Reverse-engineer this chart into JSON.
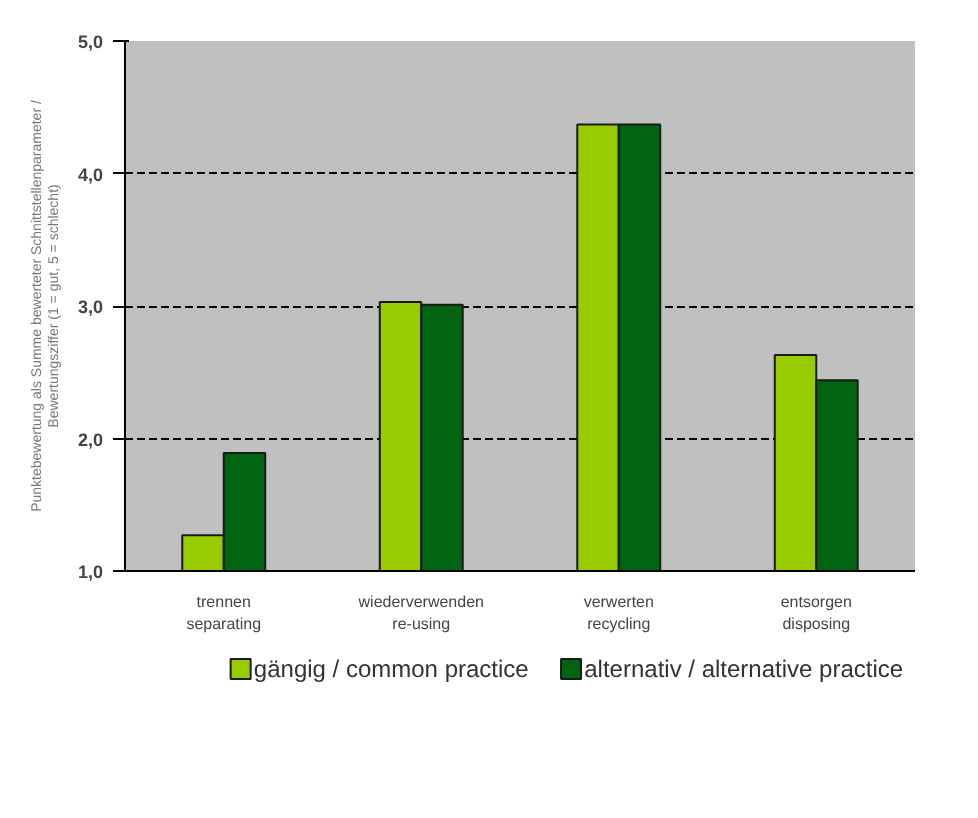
{
  "chart_data": {
    "type": "bar",
    "ylabel": "Punktebewertung als Summe bewerteter Schnittstellenparameter / Bewertungsziffer (1 = gut, 5 = schlecht)",
    "categories": [
      "trennen\nseparating",
      "wiederverwenden\nre-using",
      "verwerten\nrecycling",
      "entsorgen\ndisposing"
    ],
    "series": [
      {
        "name": "gängig / common practice",
        "color": "#99cc00",
        "values": [
          1.27,
          3.03,
          4.37,
          2.63
        ]
      },
      {
        "name": "alternativ / alternative practice",
        "color": "#006411",
        "values": [
          1.89,
          3.01,
          4.37,
          2.44
        ]
      }
    ],
    "ylim": [
      1,
      5
    ],
    "yticks": [
      {
        "value": 1,
        "label": "1,0"
      },
      {
        "value": 2,
        "label": "2,0"
      },
      {
        "value": 3,
        "label": "3,0"
      },
      {
        "value": 4,
        "label": "4,0"
      },
      {
        "value": 5,
        "label": "5,0"
      }
    ],
    "grid": "y",
    "legend": "bottom"
  }
}
